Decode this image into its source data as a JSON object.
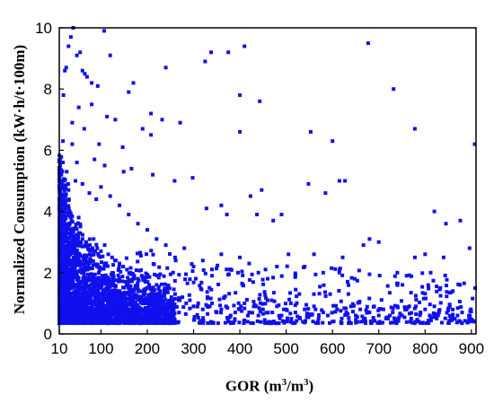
{
  "chart_data": {
    "type": "scatter",
    "title": "",
    "xlabel_main": "GOR (m",
    "xlabel_sup1": "3",
    "xlabel_mid": "/m",
    "xlabel_sup2": "3",
    "xlabel_end": ")",
    "ylabel": "Normalized Consumption (kW·h/t·100m)",
    "xlim": [
      10,
      910
    ],
    "ylim": [
      0,
      10
    ],
    "x_ticks": [
      10,
      100,
      200,
      300,
      400,
      500,
      600,
      700,
      800,
      900
    ],
    "y_ticks": [
      0,
      2,
      4,
      6,
      8,
      10
    ],
    "grid": false,
    "legend": "none",
    "marker": "square",
    "color": "#1010ee",
    "series": [
      {
        "points": [
          [
            22,
            8.6
          ],
          [
            25,
            8.7
          ],
          [
            30,
            9.4
          ],
          [
            35,
            9.7
          ],
          [
            40,
            10.0
          ],
          [
            48,
            9.1
          ],
          [
            55,
            9.2
          ],
          [
            60,
            8.6
          ],
          [
            65,
            8.5
          ],
          [
            70,
            8.4
          ],
          [
            80,
            8.2
          ],
          [
            93,
            8.1
          ],
          [
            107,
            9.9
          ],
          [
            120,
            9.1
          ],
          [
            170,
            8.2
          ],
          [
            160,
            7.9
          ],
          [
            113,
            7.1
          ],
          [
            131,
            7.0
          ],
          [
            80,
            7.5
          ],
          [
            52,
            7.4
          ],
          [
            38,
            6.9
          ],
          [
            64,
            6.7
          ],
          [
            190,
            6.7
          ],
          [
            208,
            7.2
          ],
          [
            232,
            7.0
          ],
          [
            271,
            6.9
          ],
          [
            208,
            6.5
          ],
          [
            147,
            6.1
          ],
          [
            96,
            6.2
          ],
          [
            38,
            6.2
          ],
          [
            18,
            6.3
          ],
          [
            19,
            7.8
          ],
          [
            18,
            5.6
          ],
          [
            26,
            5.3
          ],
          [
            48,
            5.6
          ],
          [
            86,
            5.7
          ],
          [
            108,
            5.5
          ],
          [
            149,
            5.3
          ],
          [
            166,
            5.4
          ],
          [
            212,
            5.2
          ],
          [
            259,
            5.0
          ],
          [
            298,
            5.1
          ],
          [
            240,
            8.7
          ],
          [
            325,
            8.9
          ],
          [
            338,
            9.2
          ],
          [
            375,
            9.2
          ],
          [
            410,
            9.4
          ],
          [
            400,
            7.8
          ],
          [
            443,
            7.6
          ],
          [
            400,
            6.6
          ],
          [
            447,
            4.7
          ],
          [
            423,
            4.5
          ],
          [
            360,
            4.2
          ],
          [
            328,
            4.1
          ],
          [
            372,
            3.9
          ],
          [
            437,
            3.9
          ],
          [
            472,
            3.7
          ],
          [
            490,
            3.9
          ],
          [
            553,
            6.6
          ],
          [
            600,
            6.3
          ],
          [
            615,
            5.0
          ],
          [
            627,
            5.0
          ],
          [
            548,
            4.9
          ],
          [
            585,
            4.6
          ],
          [
            677,
            9.5
          ],
          [
            732,
            8.0
          ],
          [
            778,
            6.7
          ],
          [
            820,
            4.0
          ],
          [
            845,
            3.6
          ],
          [
            876,
            3.7
          ],
          [
            907,
            6.2
          ],
          [
            896,
            2.8
          ],
          [
            908,
            1.5
          ],
          [
            875,
            1.6
          ],
          [
            860,
            1.4
          ],
          [
            840,
            2.5
          ],
          [
            800,
            2.6
          ],
          [
            812,
            2.0
          ],
          [
            778,
            2.5
          ],
          [
            760,
            1.9
          ],
          [
            740,
            2.0
          ],
          [
            700,
            3.0
          ],
          [
            680,
            3.1
          ],
          [
            667,
            2.9
          ],
          [
            648,
            1.8
          ],
          [
            622,
            2.5
          ],
          [
            615,
            2.1
          ],
          [
            595,
            1.3
          ],
          [
            580,
            2.0
          ],
          [
            560,
            2.6
          ],
          [
            540,
            2.2
          ],
          [
            520,
            1.9
          ],
          [
            505,
            2.6
          ],
          [
            480,
            2.2
          ],
          [
            460,
            1.8
          ],
          [
            440,
            2.0
          ],
          [
            420,
            2.3
          ],
          [
            400,
            2.5
          ],
          [
            380,
            2.1
          ],
          [
            360,
            2.6
          ],
          [
            340,
            1.9
          ],
          [
            320,
            2.4
          ],
          [
            300,
            2.2
          ],
          [
            280,
            2.8
          ],
          [
            260,
            2.5
          ],
          [
            240,
            2.9
          ],
          [
            220,
            3.1
          ],
          [
            200,
            3.4
          ],
          [
            180,
            3.6
          ],
          [
            160,
            3.9
          ],
          [
            140,
            4.2
          ],
          [
            120,
            4.5
          ],
          [
            100,
            4.8
          ],
          [
            90,
            4.4
          ],
          [
            75,
            4.6
          ],
          [
            60,
            4.9
          ],
          [
            45,
            5.0
          ],
          [
            30,
            4.7
          ],
          [
            15,
            4.5
          ],
          [
            12,
            4.0
          ],
          [
            14,
            3.8
          ],
          [
            20,
            3.6
          ],
          [
            28,
            3.5
          ],
          [
            36,
            3.4
          ],
          [
            44,
            3.2
          ],
          [
            52,
            3.3
          ],
          [
            60,
            3.1
          ],
          [
            68,
            3.0
          ],
          [
            76,
            2.9
          ],
          [
            84,
            3.1
          ],
          [
            92,
            2.8
          ],
          [
            100,
            2.7
          ],
          [
            108,
            2.9
          ],
          [
            116,
            2.6
          ],
          [
            124,
            2.5
          ],
          [
            132,
            2.4
          ],
          [
            140,
            2.3
          ],
          [
            148,
            2.2
          ],
          [
            156,
            2.1
          ],
          [
            164,
            2.0
          ],
          [
            172,
            1.9
          ],
          [
            180,
            1.8
          ],
          [
            188,
            1.9
          ],
          [
            196,
            1.7
          ],
          [
            204,
            1.6
          ],
          [
            212,
            1.5
          ],
          [
            220,
            1.6
          ],
          [
            228,
            1.4
          ],
          [
            236,
            1.3
          ],
          [
            244,
            1.5
          ],
          [
            252,
            1.2
          ],
          [
            260,
            1.3
          ],
          [
            268,
            1.1
          ],
          [
            276,
            1.2
          ],
          [
            284,
            1.0
          ],
          [
            292,
            1.1
          ],
          [
            300,
            0.9
          ],
          [
            310,
            1.0
          ],
          [
            320,
            0.8
          ],
          [
            330,
            0.9
          ],
          [
            340,
            1.0
          ],
          [
            350,
            0.7
          ],
          [
            360,
            0.8
          ],
          [
            370,
            0.9
          ],
          [
            380,
            0.6
          ],
          [
            390,
            0.7
          ],
          [
            400,
            0.8
          ],
          [
            410,
            1.0
          ],
          [
            420,
            0.7
          ],
          [
            430,
            0.9
          ],
          [
            440,
            0.6
          ],
          [
            450,
            0.8
          ],
          [
            460,
            1.1
          ],
          [
            470,
            0.7
          ],
          [
            480,
            0.9
          ],
          [
            490,
            0.6
          ],
          [
            500,
            0.8
          ],
          [
            510,
            1.0
          ],
          [
            520,
            0.7
          ],
          [
            530,
            0.5
          ],
          [
            540,
            0.8
          ],
          [
            550,
            0.6
          ],
          [
            560,
            0.9
          ],
          [
            570,
            0.5
          ],
          [
            580,
            0.7
          ],
          [
            590,
            0.6
          ],
          [
            600,
            0.4
          ],
          [
            610,
            0.8
          ],
          [
            620,
            0.5
          ],
          [
            630,
            0.7
          ],
          [
            640,
            0.9
          ],
          [
            650,
            0.6
          ],
          [
            660,
            0.8
          ],
          [
            670,
            0.5
          ],
          [
            680,
            0.7
          ],
          [
            690,
            0.9
          ],
          [
            700,
            0.6
          ],
          [
            710,
            0.8
          ],
          [
            720,
            0.5
          ],
          [
            730,
            0.7
          ],
          [
            740,
            0.9
          ],
          [
            750,
            0.6
          ],
          [
            760,
            0.8
          ],
          [
            770,
            0.5
          ],
          [
            780,
            0.9
          ],
          [
            790,
            0.7
          ],
          [
            800,
            0.8
          ],
          [
            810,
            0.6
          ],
          [
            820,
            0.9
          ],
          [
            830,
            0.7
          ],
          [
            850,
            0.8
          ],
          [
            870,
            0.6
          ],
          [
            880,
            0.7
          ],
          [
            895,
            0.5
          ],
          [
            905,
            0.4
          ]
        ]
      }
    ]
  }
}
